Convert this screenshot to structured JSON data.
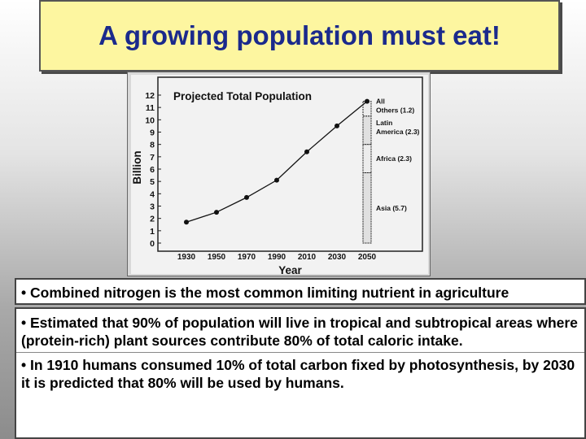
{
  "title": "A growing population must eat!",
  "chart_data": {
    "type": "line",
    "title": "Projected Total Population",
    "xlabel": "Year",
    "ylabel": "Billion",
    "ylim": [
      0,
      12
    ],
    "yticks": [
      "0",
      "1",
      "2",
      "3",
      "4",
      "5",
      "6",
      "7",
      "8",
      "9",
      "10",
      "11",
      "12"
    ],
    "categories": [
      "1930",
      "1950",
      "1970",
      "1990",
      "2010",
      "2030",
      "2050"
    ],
    "values": [
      1.7,
      2.5,
      3.7,
      5.1,
      7.4,
      9.5,
      11.5
    ],
    "stacked_bar_segments": [
      {
        "label": "Asia (5.7)",
        "value": 5.7
      },
      {
        "label": "Africa (2.3)",
        "value": 2.3
      },
      {
        "label": "Latin America (2.3)",
        "value": 2.3
      },
      {
        "label": "All Others (1.2)",
        "value": 1.2
      }
    ],
    "grid": false
  },
  "bullets": {
    "b1": "• Combined nitrogen is the most common limiting nutrient in agriculture",
    "b2": "• Estimated that 90% of population will live in tropical and subtropical areas where (protein-rich) plant sources contribute 80% of total caloric intake.",
    "b3": "• In 1910 humans consumed 10% of total carbon fixed by photosynthesis, by 2030 it is predicted that 80% will be used by humans."
  }
}
